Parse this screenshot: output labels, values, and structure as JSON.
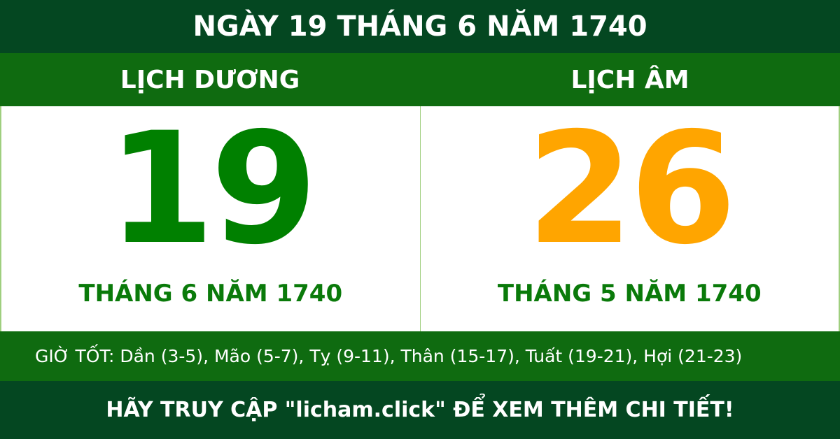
{
  "title": "NGÀY 19 THÁNG 6 NĂM 1740",
  "solar": {
    "header": "LỊCH DƯƠNG",
    "day": "19",
    "month_year": "THÁNG 6 NĂM 1740"
  },
  "lunar": {
    "header": "LỊCH ÂM",
    "day": "26",
    "month_year": "THÁNG 5 NĂM 1740"
  },
  "good_hours": "GIỜ TỐT: Dần (3-5), Mão (5-7), Tỵ (9-11), Thân (15-17), Tuất (19-21), Hợi (21-23)",
  "footer": "HÃY TRUY CẬP \"licham.click\" ĐỂ XEM THÊM CHI TIẾT!",
  "colors": {
    "dark_green": "#044721",
    "band_green": "#0f6b10",
    "solar_day": "#008000",
    "lunar_day": "#ffa500"
  }
}
